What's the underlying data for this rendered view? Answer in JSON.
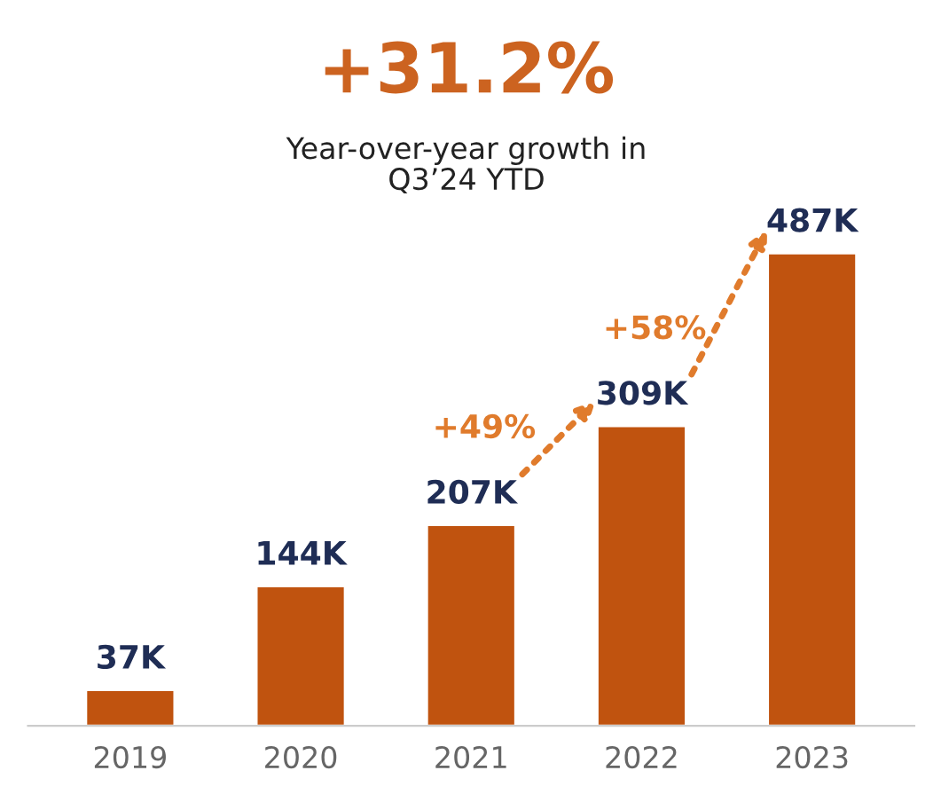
{
  "chart_data": {
    "type": "bar",
    "title": "+31.2%",
    "subtitle": "Year-over-year growth in\nQ3’24 YTD",
    "categories": [
      "2019",
      "2020",
      "2021",
      "2022",
      "2023"
    ],
    "values": [
      37,
      144,
      207,
      309,
      487
    ],
    "value_labels": [
      "37K",
      "144K",
      "207K",
      "309K",
      "487K"
    ],
    "color": "#c0530f",
    "annotations": [
      "+49%",
      "+58%"
    ],
    "grid": false,
    "legend": false
  }
}
